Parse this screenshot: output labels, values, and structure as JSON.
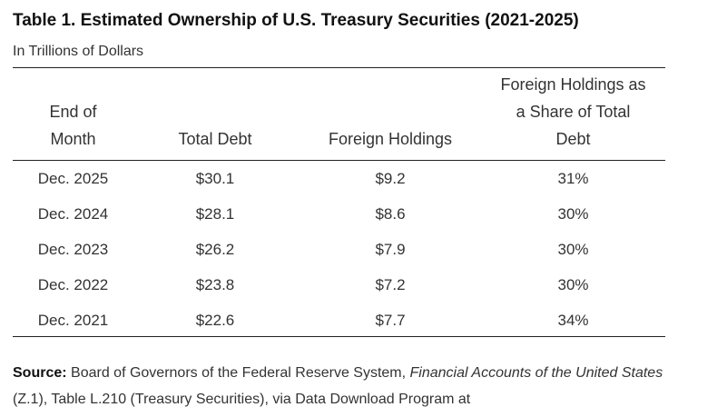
{
  "title": "Table 1. Estimated Ownership of U.S. Treasury Securities (2021-2025)",
  "subtitle": "In Trillions of Dollars",
  "columns": [
    [
      "End of",
      "Month"
    ],
    [
      "Total Debt"
    ],
    [
      "Foreign Holdings"
    ],
    [
      "Foreign Holdings as",
      "a Share of Total",
      "Debt"
    ]
  ],
  "rows": [
    [
      "Dec. 2025",
      "$30.1",
      "$9.2",
      "31%"
    ],
    [
      "Dec. 2024",
      "$28.1",
      "$8.6",
      "30%"
    ],
    [
      "Dec. 2023",
      "$26.2",
      "$7.9",
      "30%"
    ],
    [
      "Dec. 2022",
      "$23.8",
      "$7.2",
      "30%"
    ],
    [
      "Dec. 2021",
      "$22.6",
      "$7.7",
      "34%"
    ]
  ],
  "source": {
    "label": "Source:",
    "text1": " Board of Governors of the Federal Reserve System, ",
    "italic1": "Financial Accounts of the United States",
    "text2": " (Z.1), Table L.210 (Treasury Securities), via Data Download Program at"
  }
}
